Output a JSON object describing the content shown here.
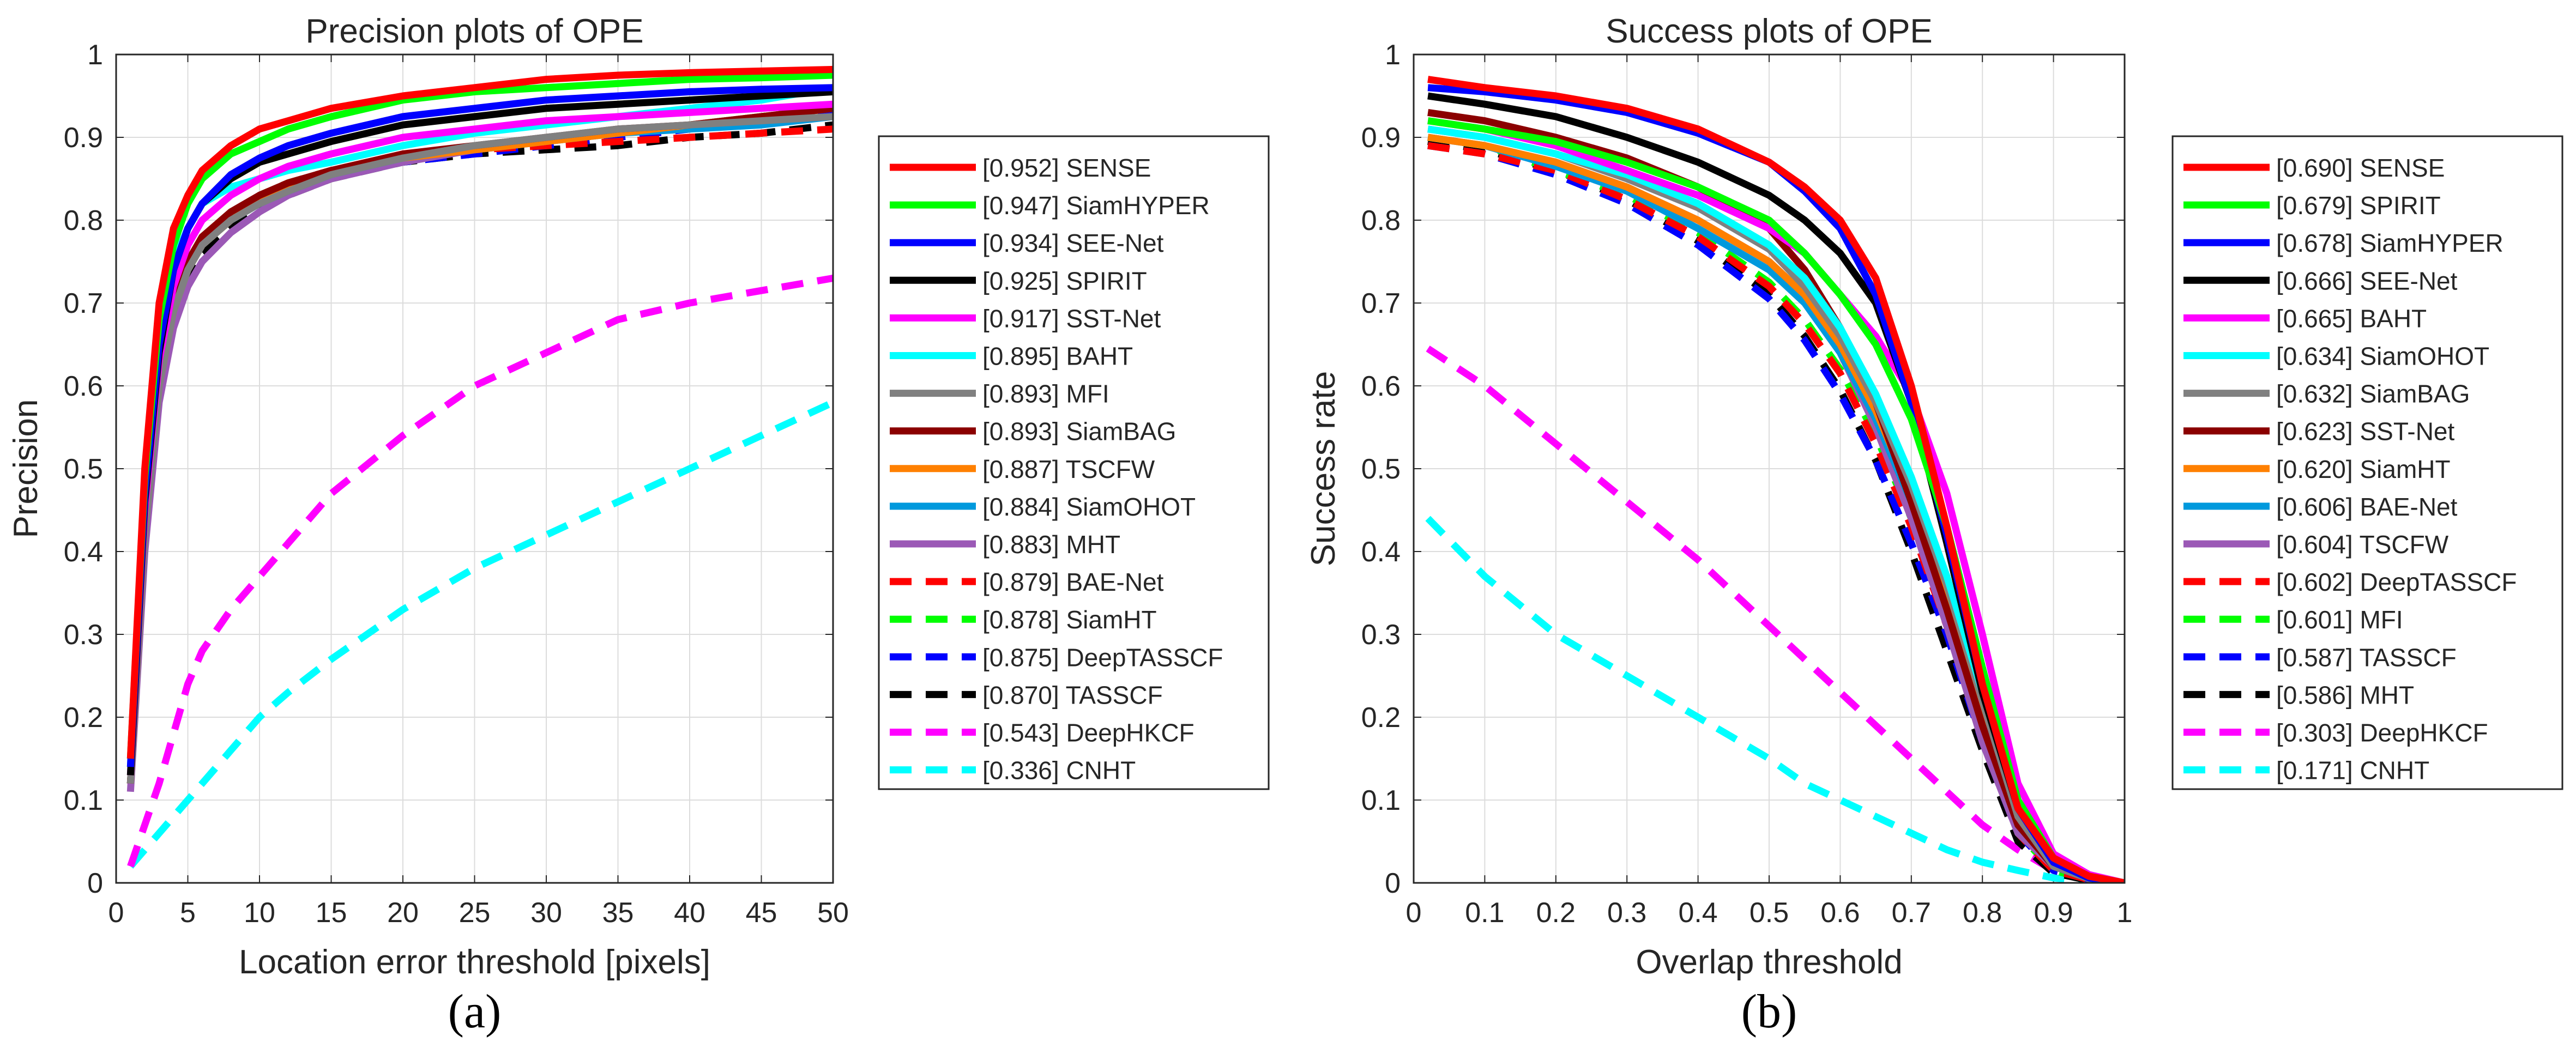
{
  "chart_data": [
    {
      "type": "line",
      "panel_label": "(a)",
      "title": "Precision plots of OPE",
      "xlabel": "Location error threshold [pixels]",
      "ylabel": "Precision",
      "xlim": [
        0,
        50
      ],
      "ylim": [
        0,
        1
      ],
      "xticks": [
        "0",
        "5",
        "10",
        "15",
        "20",
        "25",
        "30",
        "35",
        "40",
        "45",
        "50"
      ],
      "yticks": [
        "0",
        "0.1",
        "0.2",
        "0.3",
        "0.4",
        "0.5",
        "0.6",
        "0.7",
        "0.8",
        "0.9",
        "1"
      ],
      "grid": true,
      "legend_position": "outside-right",
      "x": [
        1,
        2,
        3,
        4,
        5,
        6,
        8,
        10,
        12,
        15,
        20,
        25,
        30,
        35,
        40,
        45,
        50
      ],
      "series": [
        {
          "legend": "[0.952] SENSE",
          "color": "#ff0000",
          "dashed": false,
          "values": [
            0.15,
            0.5,
            0.7,
            0.79,
            0.83,
            0.86,
            0.89,
            0.91,
            0.92,
            0.935,
            0.95,
            0.96,
            0.97,
            0.975,
            0.978,
            0.98,
            0.982
          ]
        },
        {
          "legend": "[0.947] SiamHYPER",
          "color": "#00ff00",
          "dashed": false,
          "values": [
            0.15,
            0.49,
            0.68,
            0.77,
            0.82,
            0.85,
            0.88,
            0.895,
            0.91,
            0.925,
            0.945,
            0.955,
            0.96,
            0.965,
            0.97,
            0.972,
            0.975
          ]
        },
        {
          "legend": "[0.934] SEE-Net",
          "color": "#0000ff",
          "dashed": false,
          "values": [
            0.14,
            0.47,
            0.65,
            0.74,
            0.79,
            0.82,
            0.855,
            0.875,
            0.89,
            0.905,
            0.925,
            0.935,
            0.945,
            0.95,
            0.955,
            0.958,
            0.96
          ]
        },
        {
          "legend": "[0.925] SPIRIT",
          "color": "#000000",
          "dashed": false,
          "values": [
            0.13,
            0.46,
            0.64,
            0.74,
            0.79,
            0.82,
            0.85,
            0.87,
            0.88,
            0.895,
            0.915,
            0.925,
            0.935,
            0.94,
            0.945,
            0.95,
            0.955
          ]
        },
        {
          "legend": "[0.917] SST-Net",
          "color": "#ff00ff",
          "dashed": false,
          "values": [
            0.13,
            0.45,
            0.63,
            0.72,
            0.77,
            0.8,
            0.83,
            0.85,
            0.865,
            0.88,
            0.9,
            0.91,
            0.92,
            0.925,
            0.93,
            0.935,
            0.94
          ]
        },
        {
          "legend": "[0.895] BAHT",
          "color": "#00ffff",
          "dashed": false,
          "values": [
            0.14,
            0.47,
            0.66,
            0.75,
            0.79,
            0.82,
            0.84,
            0.85,
            0.86,
            0.87,
            0.89,
            0.905,
            0.915,
            0.925,
            0.935,
            0.945,
            0.96
          ]
        },
        {
          "legend": "[0.893] MFI",
          "color": "#808080",
          "dashed": false,
          "values": [
            0.12,
            0.42,
            0.6,
            0.69,
            0.74,
            0.77,
            0.8,
            0.82,
            0.835,
            0.855,
            0.875,
            0.89,
            0.9,
            0.91,
            0.915,
            0.92,
            0.925
          ]
        },
        {
          "legend": "[0.893] SiamBAG",
          "color": "#8b0000",
          "dashed": false,
          "values": [
            0.12,
            0.43,
            0.61,
            0.7,
            0.75,
            0.78,
            0.81,
            0.83,
            0.845,
            0.86,
            0.88,
            0.89,
            0.9,
            0.91,
            0.915,
            0.925,
            0.935
          ]
        },
        {
          "legend": "[0.887] TSCFW",
          "color": "#ff8000",
          "dashed": false,
          "values": [
            0.12,
            0.42,
            0.6,
            0.69,
            0.74,
            0.77,
            0.8,
            0.825,
            0.84,
            0.86,
            0.875,
            0.885,
            0.895,
            0.905,
            0.915,
            0.925,
            0.935
          ]
        },
        {
          "legend": "[0.884] SiamOHOT",
          "color": "#0099dd",
          "dashed": false,
          "values": [
            0.12,
            0.42,
            0.6,
            0.69,
            0.74,
            0.77,
            0.8,
            0.82,
            0.835,
            0.855,
            0.875,
            0.885,
            0.895,
            0.905,
            0.91,
            0.915,
            0.925
          ]
        },
        {
          "legend": "[0.883] MHT",
          "color": "#9b59b6",
          "dashed": false,
          "values": [
            0.11,
            0.4,
            0.58,
            0.67,
            0.72,
            0.75,
            0.785,
            0.81,
            0.83,
            0.85,
            0.87,
            0.885,
            0.895,
            0.905,
            0.915,
            0.925,
            0.935
          ]
        },
        {
          "legend": "[0.879] BAE-Net",
          "color": "#ff0000",
          "dashed": true,
          "values": [
            0.12,
            0.42,
            0.6,
            0.69,
            0.74,
            0.77,
            0.8,
            0.83,
            0.845,
            0.86,
            0.875,
            0.885,
            0.89,
            0.895,
            0.9,
            0.905,
            0.91
          ]
        },
        {
          "legend": "[0.878] SiamHT",
          "color": "#00ff00",
          "dashed": true,
          "values": [
            0.12,
            0.42,
            0.6,
            0.69,
            0.74,
            0.77,
            0.8,
            0.83,
            0.845,
            0.86,
            0.875,
            0.885,
            0.895,
            0.905,
            0.915,
            0.925,
            0.94
          ]
        },
        {
          "legend": "[0.875] DeepTASSCF",
          "color": "#0000ff",
          "dashed": true,
          "values": [
            0.12,
            0.42,
            0.6,
            0.69,
            0.74,
            0.77,
            0.8,
            0.825,
            0.84,
            0.855,
            0.87,
            0.88,
            0.89,
            0.9,
            0.91,
            0.92,
            0.93
          ]
        },
        {
          "legend": "[0.870] TASSCF",
          "color": "#000000",
          "dashed": true,
          "values": [
            0.12,
            0.41,
            0.59,
            0.68,
            0.73,
            0.76,
            0.79,
            0.815,
            0.83,
            0.85,
            0.87,
            0.88,
            0.885,
            0.89,
            0.9,
            0.905,
            0.915
          ]
        },
        {
          "legend": "[0.543] DeepHKCF",
          "color": "#ff00ff",
          "dashed": true,
          "values": [
            0.02,
            0.07,
            0.12,
            0.18,
            0.24,
            0.28,
            0.33,
            0.37,
            0.41,
            0.47,
            0.54,
            0.6,
            0.64,
            0.68,
            0.7,
            0.715,
            0.73
          ]
        },
        {
          "legend": "[0.336] CNHT",
          "color": "#00ffff",
          "dashed": true,
          "values": [
            0.02,
            0.04,
            0.06,
            0.08,
            0.1,
            0.12,
            0.16,
            0.2,
            0.23,
            0.27,
            0.33,
            0.38,
            0.42,
            0.46,
            0.5,
            0.54,
            0.58
          ]
        }
      ]
    },
    {
      "type": "line",
      "panel_label": "(b)",
      "title": "Success plots of OPE",
      "xlabel": "Overlap threshold",
      "ylabel": "Success rate",
      "xlim": [
        0,
        1
      ],
      "ylim": [
        0,
        1
      ],
      "xticks": [
        "0",
        "0.1",
        "0.2",
        "0.3",
        "0.4",
        "0.5",
        "0.6",
        "0.7",
        "0.8",
        "0.9",
        "1"
      ],
      "yticks": [
        "0",
        "0.1",
        "0.2",
        "0.3",
        "0.4",
        "0.5",
        "0.6",
        "0.7",
        "0.8",
        "0.9",
        "1"
      ],
      "grid": true,
      "legend_position": "outside-right",
      "x": [
        0.02,
        0.1,
        0.2,
        0.3,
        0.4,
        0.5,
        0.55,
        0.6,
        0.65,
        0.7,
        0.75,
        0.8,
        0.85,
        0.9,
        0.95,
        1.0
      ],
      "series": [
        {
          "legend": "[0.690] SENSE",
          "color": "#ff0000",
          "dashed": false,
          "values": [
            0.97,
            0.96,
            0.95,
            0.935,
            0.91,
            0.87,
            0.84,
            0.8,
            0.73,
            0.6,
            0.43,
            0.24,
            0.09,
            0.03,
            0.008,
            0.0
          ]
        },
        {
          "legend": "[0.679] SPIRIT",
          "color": "#00ff00",
          "dashed": false,
          "values": [
            0.92,
            0.91,
            0.895,
            0.87,
            0.84,
            0.8,
            0.76,
            0.71,
            0.65,
            0.56,
            0.43,
            0.26,
            0.1,
            0.03,
            0.008,
            0.0
          ]
        },
        {
          "legend": "[0.678] SiamHYPER",
          "color": "#0000ff",
          "dashed": false,
          "values": [
            0.96,
            0.955,
            0.945,
            0.93,
            0.905,
            0.87,
            0.835,
            0.79,
            0.71,
            0.58,
            0.42,
            0.24,
            0.09,
            0.025,
            0.006,
            0.0
          ]
        },
        {
          "legend": "[0.666] SEE-Net",
          "color": "#000000",
          "dashed": false,
          "values": [
            0.95,
            0.94,
            0.925,
            0.9,
            0.87,
            0.83,
            0.8,
            0.76,
            0.7,
            0.58,
            0.41,
            0.23,
            0.09,
            0.025,
            0.006,
            0.0
          ]
        },
        {
          "legend": "[0.665] BAHT",
          "color": "#ff00ff",
          "dashed": false,
          "values": [
            0.92,
            0.91,
            0.89,
            0.86,
            0.83,
            0.79,
            0.76,
            0.71,
            0.66,
            0.59,
            0.47,
            0.3,
            0.12,
            0.035,
            0.01,
            0.0
          ]
        },
        {
          "legend": "[0.634] SiamOHOT",
          "color": "#00ffff",
          "dashed": false,
          "values": [
            0.91,
            0.9,
            0.88,
            0.855,
            0.82,
            0.77,
            0.73,
            0.67,
            0.59,
            0.49,
            0.37,
            0.23,
            0.09,
            0.025,
            0.006,
            0.0
          ]
        },
        {
          "legend": "[0.632] SiamBAG",
          "color": "#808080",
          "dashed": false,
          "values": [
            0.91,
            0.9,
            0.88,
            0.85,
            0.815,
            0.765,
            0.72,
            0.66,
            0.58,
            0.48,
            0.36,
            0.22,
            0.08,
            0.02,
            0.005,
            0.0
          ]
        },
        {
          "legend": "[0.623] SST-Net",
          "color": "#8b0000",
          "dashed": false,
          "values": [
            0.93,
            0.92,
            0.9,
            0.875,
            0.84,
            0.79,
            0.74,
            0.67,
            0.58,
            0.46,
            0.33,
            0.19,
            0.07,
            0.02,
            0.005,
            0.0
          ]
        },
        {
          "legend": "[0.620] SiamHT",
          "color": "#ff8000",
          "dashed": false,
          "values": [
            0.9,
            0.89,
            0.87,
            0.84,
            0.8,
            0.75,
            0.71,
            0.65,
            0.57,
            0.47,
            0.35,
            0.21,
            0.08,
            0.02,
            0.005,
            0.0
          ]
        },
        {
          "legend": "[0.606] BAE-Net",
          "color": "#0099dd",
          "dashed": false,
          "values": [
            0.9,
            0.89,
            0.865,
            0.835,
            0.79,
            0.74,
            0.7,
            0.64,
            0.56,
            0.46,
            0.34,
            0.2,
            0.07,
            0.02,
            0.005,
            0.0
          ]
        },
        {
          "legend": "[0.604] TSCFW",
          "color": "#9b59b6",
          "dashed": false,
          "values": [
            0.9,
            0.89,
            0.87,
            0.84,
            0.8,
            0.75,
            0.71,
            0.64,
            0.55,
            0.44,
            0.31,
            0.17,
            0.06,
            0.02,
            0.005,
            0.0
          ]
        },
        {
          "legend": "[0.602] DeepTASSCF",
          "color": "#ff0000",
          "dashed": true,
          "values": [
            0.89,
            0.88,
            0.86,
            0.825,
            0.78,
            0.72,
            0.675,
            0.615,
            0.53,
            0.43,
            0.31,
            0.18,
            0.06,
            0.015,
            0.004,
            0.0
          ]
        },
        {
          "legend": "[0.601] MFI",
          "color": "#00ff00",
          "dashed": true,
          "values": [
            0.9,
            0.89,
            0.86,
            0.83,
            0.785,
            0.725,
            0.68,
            0.62,
            0.54,
            0.44,
            0.32,
            0.18,
            0.06,
            0.015,
            0.004,
            0.0
          ]
        },
        {
          "legend": "[0.587] TASSCF",
          "color": "#0000ff",
          "dashed": true,
          "values": [
            0.89,
            0.88,
            0.855,
            0.82,
            0.77,
            0.705,
            0.655,
            0.59,
            0.51,
            0.41,
            0.3,
            0.17,
            0.06,
            0.015,
            0.004,
            0.0
          ]
        },
        {
          "legend": "[0.586] MHT",
          "color": "#000000",
          "dashed": true,
          "values": [
            0.895,
            0.885,
            0.86,
            0.825,
            0.775,
            0.71,
            0.66,
            0.595,
            0.51,
            0.4,
            0.28,
            0.16,
            0.05,
            0.012,
            0.003,
            0.0
          ]
        },
        {
          "legend": "[0.303] DeepHKCF",
          "color": "#ff00ff",
          "dashed": true,
          "values": [
            0.645,
            0.6,
            0.53,
            0.46,
            0.39,
            0.31,
            0.27,
            0.23,
            0.19,
            0.15,
            0.11,
            0.07,
            0.04,
            0.015,
            0.004,
            0.0
          ]
        },
        {
          "legend": "[0.171] CNHT",
          "color": "#00ffff",
          "dashed": true,
          "values": [
            0.44,
            0.37,
            0.3,
            0.25,
            0.2,
            0.15,
            0.12,
            0.1,
            0.08,
            0.06,
            0.04,
            0.025,
            0.015,
            0.006,
            0.002,
            0.0
          ]
        }
      ]
    }
  ]
}
